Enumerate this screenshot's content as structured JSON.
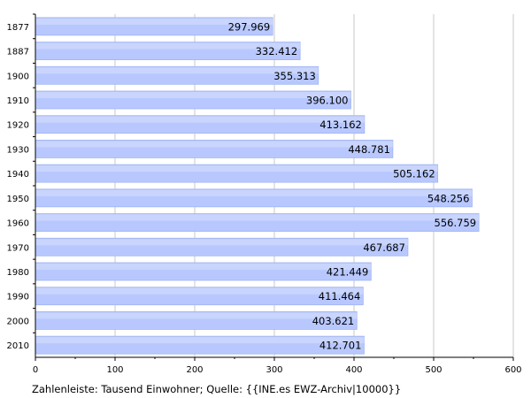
{
  "chart_data": {
    "type": "bar",
    "orientation": "horizontal",
    "categories": [
      "1877",
      "1887",
      "1900",
      "1910",
      "1920",
      "1930",
      "1940",
      "1950",
      "1960",
      "1970",
      "1980",
      "1990",
      "2000",
      "2010"
    ],
    "values": [
      297.969,
      332.412,
      355.313,
      396.1,
      413.162,
      448.781,
      505.162,
      548.256,
      556.759,
      467.687,
      421.449,
      411.464,
      403.621,
      412.701
    ],
    "value_labels": [
      "297.969",
      "332.412",
      "355.313",
      "396.100",
      "413.162",
      "448.781",
      "505.162",
      "548.256",
      "556.759",
      "467.687",
      "421.449",
      "411.464",
      "403.621",
      "412.701"
    ],
    "xlim": [
      0,
      600
    ],
    "x_ticks": [
      "0",
      "100",
      "200",
      "300",
      "400",
      "500",
      "600"
    ],
    "grid": "vertical",
    "xlabel": "",
    "ylabel": "",
    "title": "",
    "bar_color": "#b8c8ff",
    "bar_edge_color": "#a0b4f0"
  },
  "caption": "Zahlenleiste: Tausend Einwohner; Quelle: {{INE.es EWZ-Archiv|10000}}"
}
